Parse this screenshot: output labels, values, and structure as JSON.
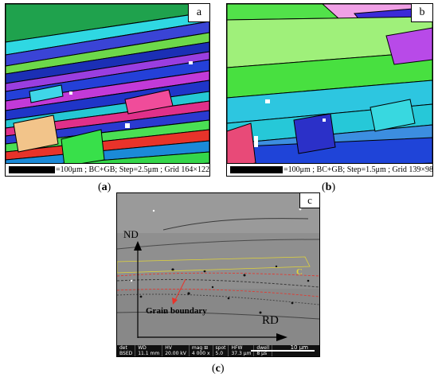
{
  "panels": [
    {
      "id": "a",
      "letter": "a",
      "caption_letter": "a",
      "scale_text": "=100μm ; BC+GB; Step=2.5μm ; Grid 164×122"
    },
    {
      "id": "b",
      "letter": "b",
      "caption_letter": "b",
      "scale_text": "=100μm ; BC+GB; Step=1.5μm ; Grid 139×98"
    }
  ],
  "sem": {
    "letter": "c",
    "caption_letter": "c",
    "nd_label": "ND",
    "rd_label": "RD",
    "grain_boundary_label": "Grain boundary",
    "region_label": "C",
    "info_headers": [
      "det",
      "WD",
      "HV",
      "mag ⊞",
      "spot",
      "HFW",
      "dwell"
    ],
    "info_values": [
      "BSED",
      "11.1 mm",
      "20.00 kV",
      "4 000 x",
      "5.0",
      "37.3 μm",
      "8 μs"
    ],
    "scale_label": "10 μm"
  },
  "colors": {
    "accent_red": "#e8332a",
    "region_outline": "#e0d43a"
  }
}
